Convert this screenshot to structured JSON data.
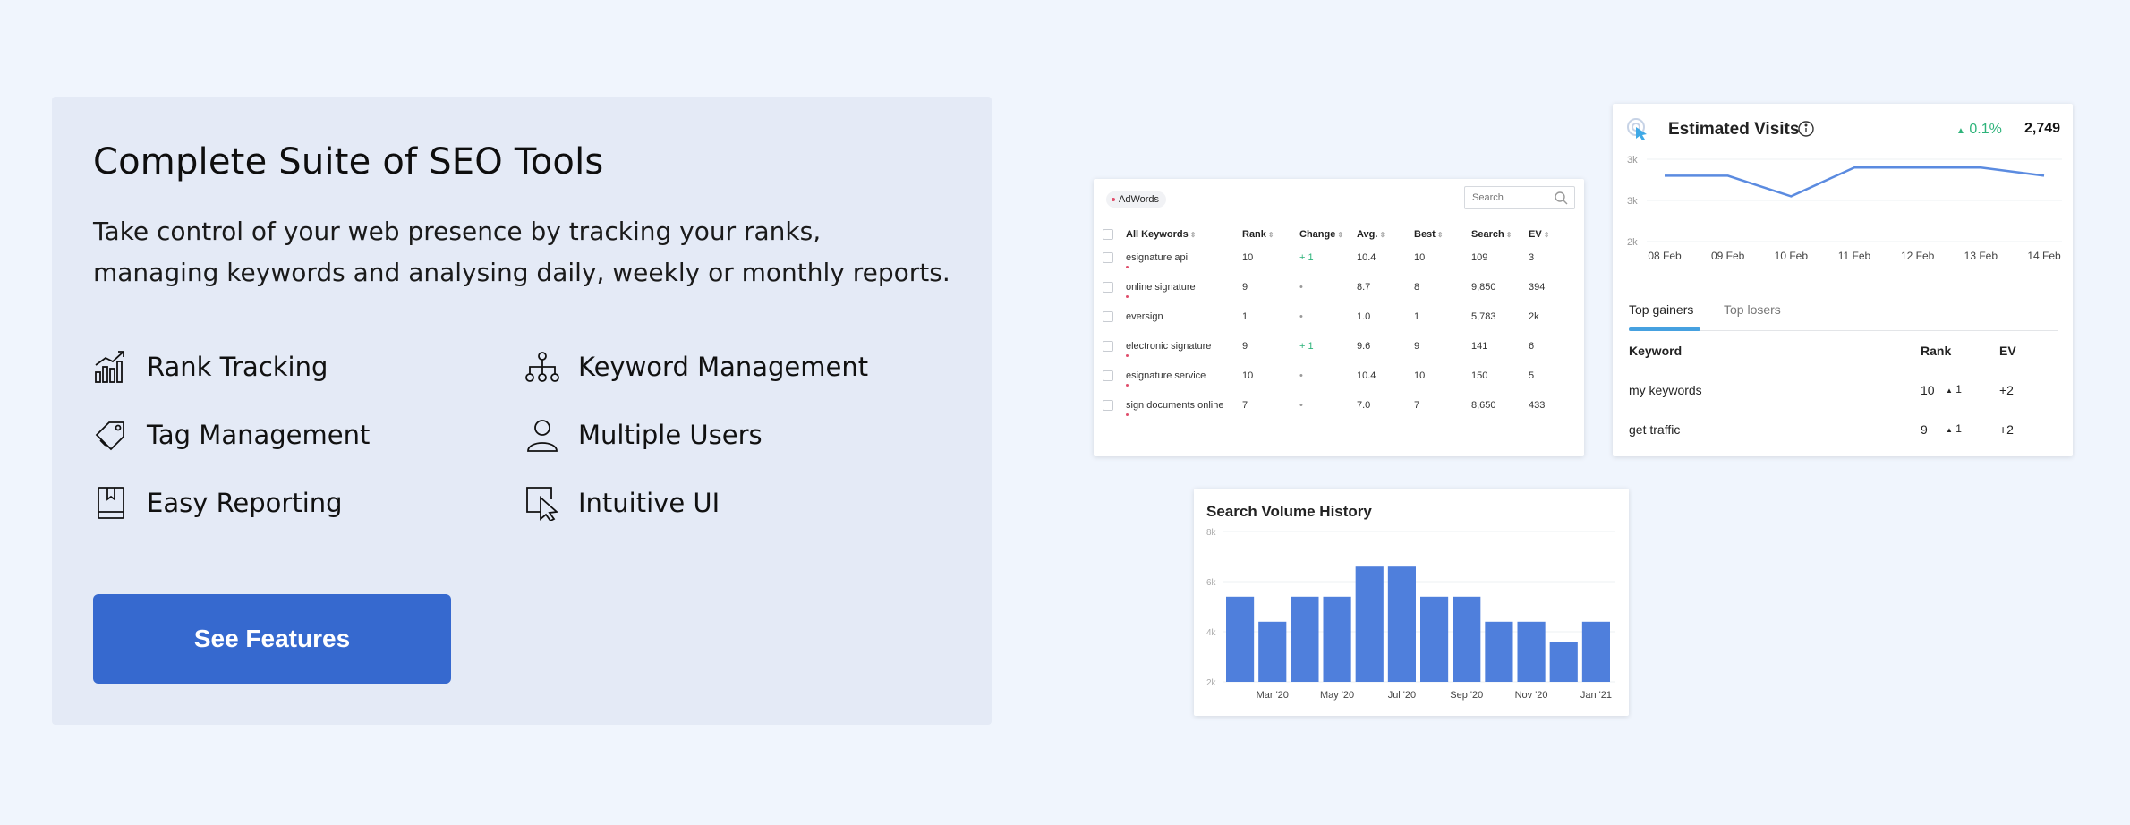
{
  "left": {
    "title": "Complete Suite of SEO Tools",
    "description": "Take control of your web presence by tracking your ranks, managing keywords and analysing daily, weekly or monthly reports.",
    "features": [
      {
        "label": "Rank Tracking",
        "icon": "rank-chart-icon"
      },
      {
        "label": "Keyword Management",
        "icon": "hierarchy-icon"
      },
      {
        "label": "Tag Management",
        "icon": "tag-icon"
      },
      {
        "label": "Multiple Users",
        "icon": "user-icon"
      },
      {
        "label": "Easy Reporting",
        "icon": "book-icon"
      },
      {
        "label": "Intuitive UI",
        "icon": "cursor-icon"
      }
    ],
    "cta_label": "See Features",
    "cta_color": "#3669cf"
  },
  "keywords_card": {
    "tag": "AdWords",
    "search_placeholder": "Search",
    "columns": [
      "All Keywords",
      "Rank",
      "Change",
      "Avg.",
      "Best",
      "Search",
      "EV"
    ],
    "rows": [
      {
        "keyword": "esignature api",
        "rank": "10",
        "change": "+ 1",
        "avg": "10.4",
        "best": "10",
        "search": "109",
        "ev": "3"
      },
      {
        "keyword": "online signature",
        "rank": "9",
        "change": "•",
        "avg": "8.7",
        "best": "8",
        "search": "9,850",
        "ev": "394"
      },
      {
        "keyword": "eversign",
        "rank": "1",
        "change": "•",
        "avg": "1.0",
        "best": "1",
        "search": "5,783",
        "ev": "2k"
      },
      {
        "keyword": "electronic signature",
        "rank": "9",
        "change": "+ 1",
        "avg": "9.6",
        "best": "9",
        "search": "141",
        "ev": "6"
      },
      {
        "keyword": "esignature service",
        "rank": "10",
        "change": "•",
        "avg": "10.4",
        "best": "10",
        "search": "150",
        "ev": "5"
      },
      {
        "keyword": "sign documents online",
        "rank": "7",
        "change": "•",
        "avg": "7.0",
        "best": "7",
        "search": "8,650",
        "ev": "433"
      }
    ]
  },
  "visits_card": {
    "title": "Estimated Visits",
    "change": "0.1%",
    "total": "2,749",
    "chart_data": {
      "type": "line",
      "x": [
        "08 Feb",
        "09 Feb",
        "10 Feb",
        "11 Feb",
        "12 Feb",
        "13 Feb",
        "14 Feb"
      ],
      "y_ticks": [
        "3k",
        "3k",
        "2k"
      ],
      "values": [
        2.8,
        2.8,
        2.55,
        2.9,
        2.9,
        2.9,
        2.8
      ]
    },
    "tabs": [
      "Top gainers",
      "Top losers"
    ],
    "table_headers": [
      "Keyword",
      "Rank",
      "EV"
    ],
    "rows": [
      {
        "keyword": "my keywords",
        "rank": "10",
        "change": "1",
        "ev": "+2"
      },
      {
        "keyword": "get traffic",
        "rank": "9",
        "change": "1",
        "ev": "+2"
      }
    ]
  },
  "volume_card": {
    "title": "Search Volume History",
    "chart_data": {
      "type": "bar",
      "y_ticks": [
        "8k",
        "6k",
        "4k",
        "2k"
      ],
      "ylim": [
        2,
        8
      ],
      "x_labels": [
        "Mar '20",
        "May '20",
        "Jul '20",
        "Sep '20",
        "Nov '20",
        "Jan '21"
      ],
      "values": [
        5.4,
        4.4,
        5.4,
        5.4,
        6.6,
        6.6,
        5.4,
        5.4,
        4.4,
        4.4,
        3.6,
        4.4
      ],
      "color": "#4f7fdc"
    }
  }
}
